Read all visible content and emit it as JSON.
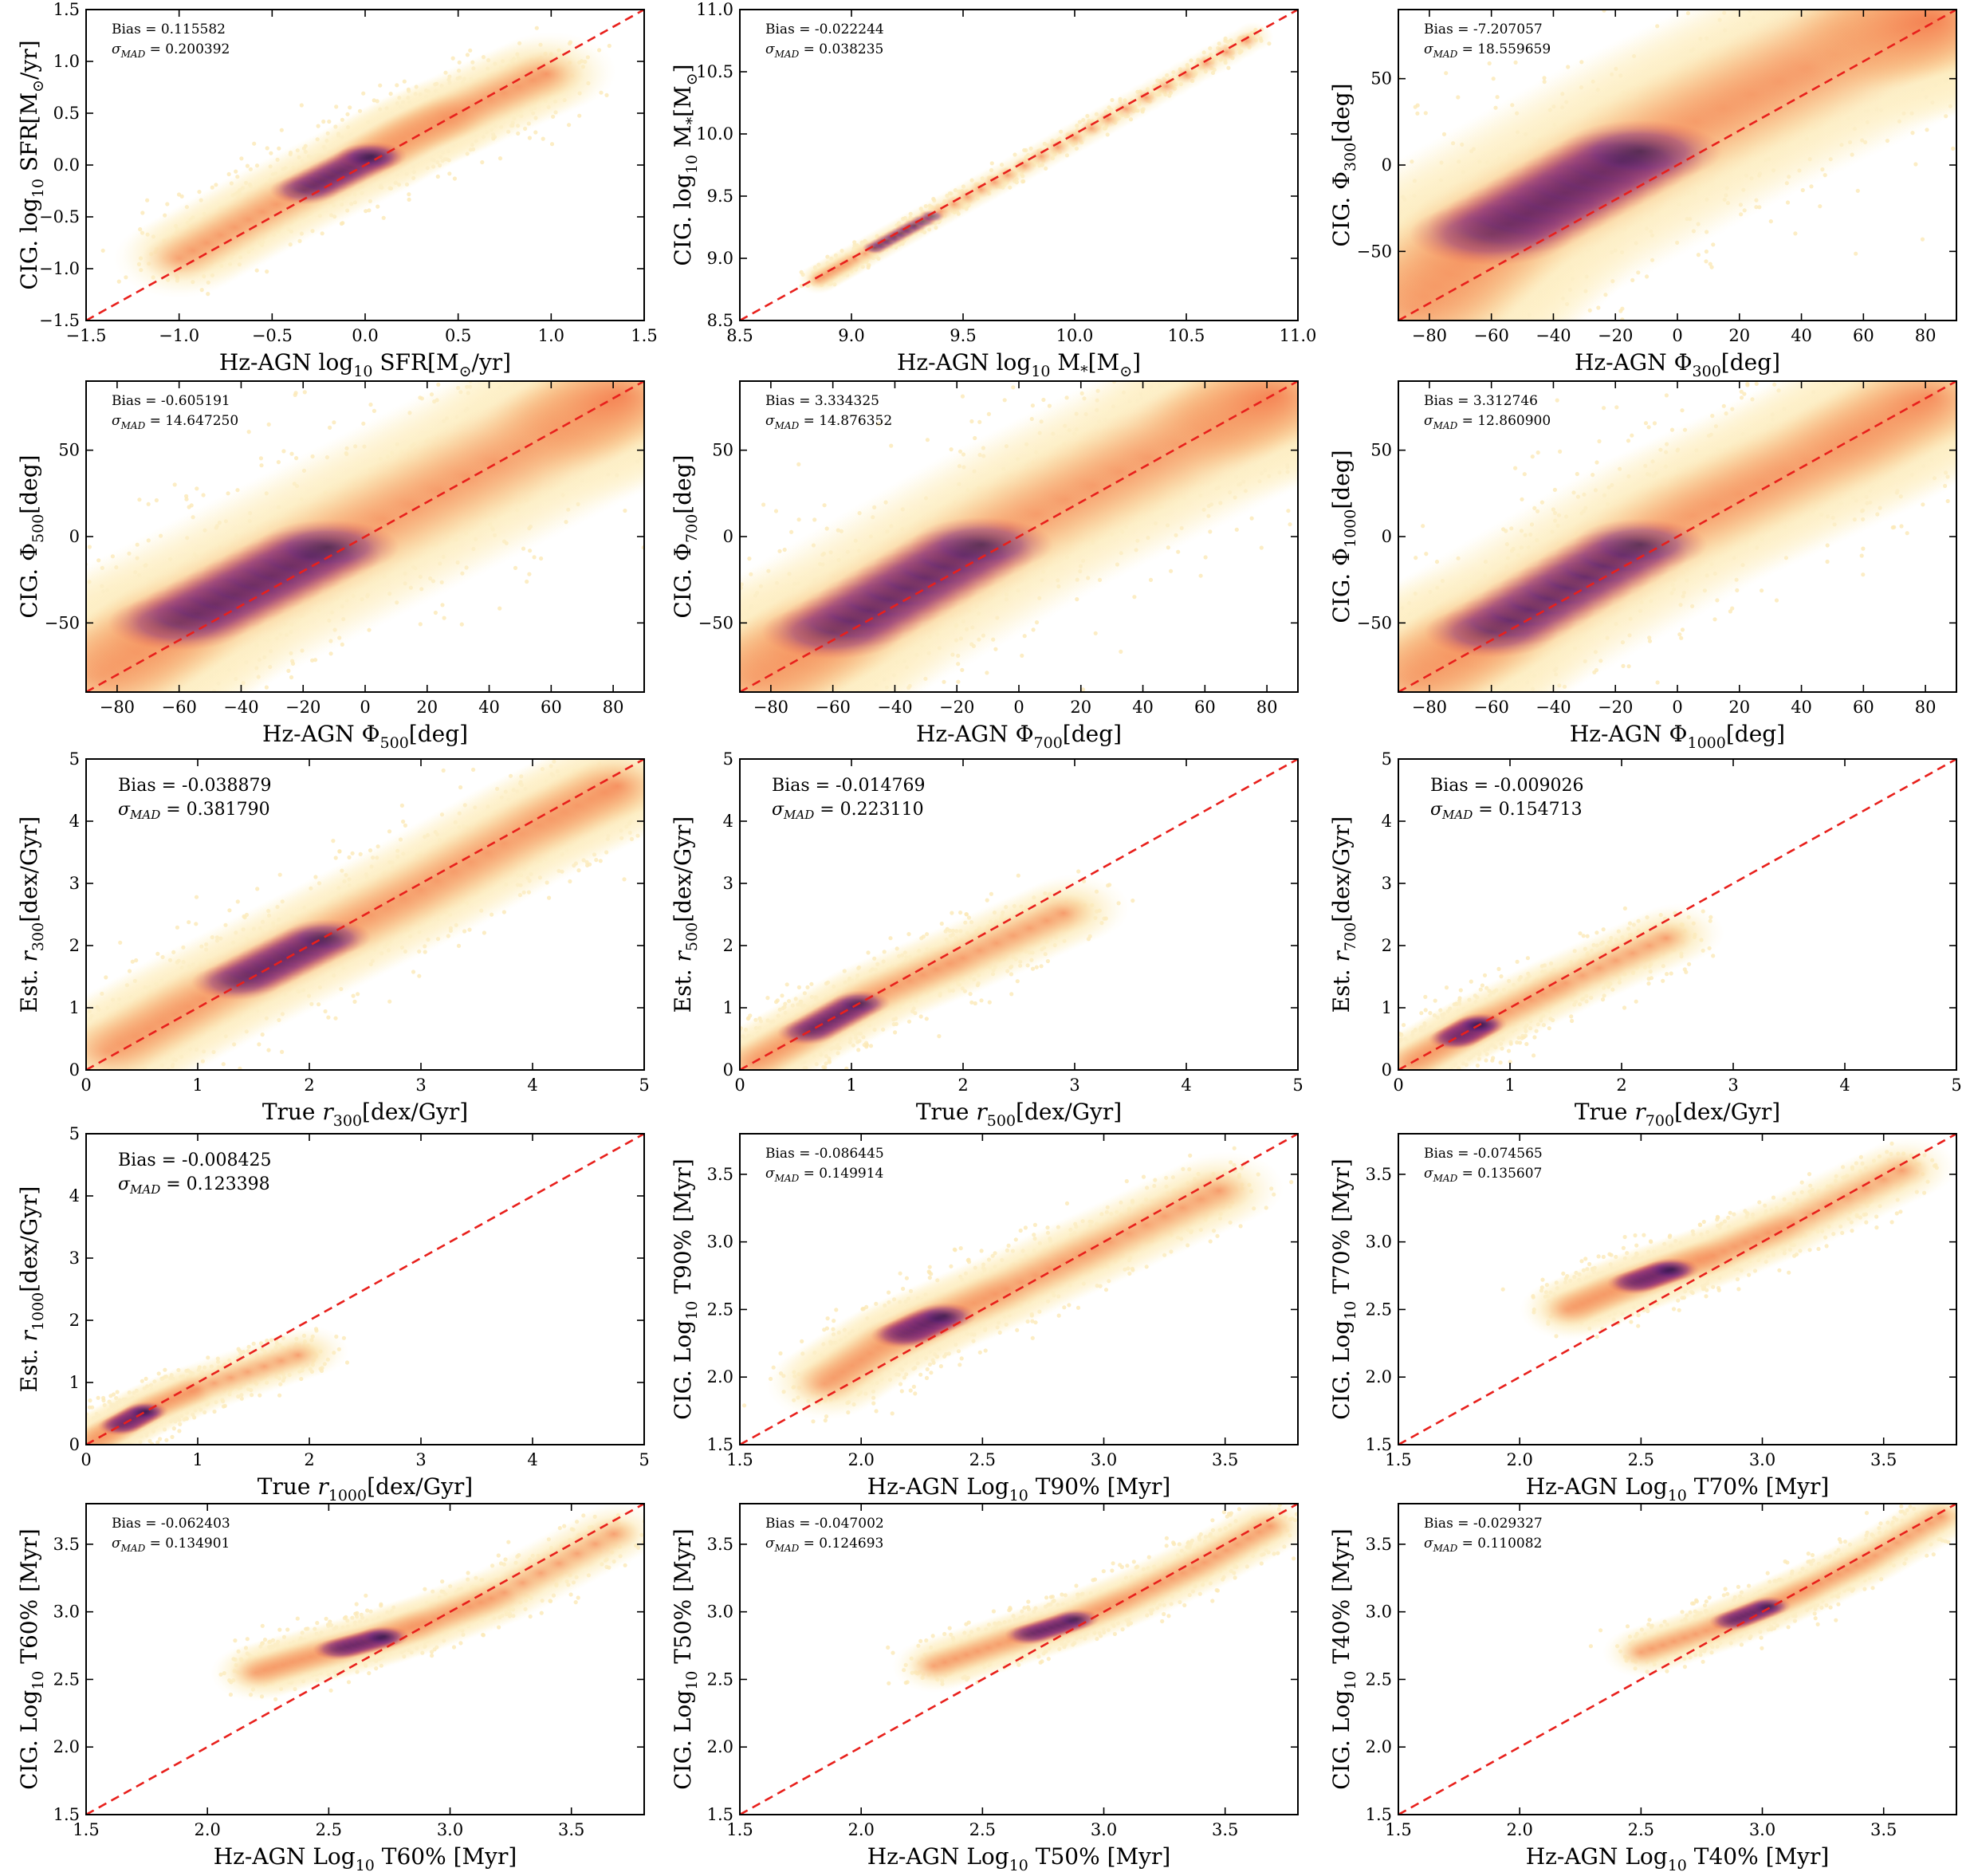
{
  "figure": {
    "caption": "",
    "colors": {
      "diagonal": "#e8201c",
      "cmap_low": "#fcf2c5",
      "cmap_mid": "#f26a4b",
      "cmap_high": "#1b0c41"
    }
  },
  "chart_data": [
    {
      "type": "scatter",
      "title": "",
      "xlabel": "Hz-AGN log10 SFR[M⊙/yr]",
      "ylabel": "CIG. log10 SFR[M⊙/yr]",
      "xlim": [
        -1.5,
        1.5
      ],
      "ylim": [
        -1.5,
        1.5
      ],
      "xticks": [
        -1.5,
        -1.0,
        -0.5,
        0.0,
        0.5,
        1.0,
        1.5
      ],
      "yticks": [
        -1.5,
        -1.0,
        -0.5,
        0.0,
        0.5,
        1.0,
        1.5
      ],
      "xtick_labels": [
        "−1.5",
        "−1.0",
        "−0.5",
        "0.0",
        "0.5",
        "1.0",
        "1.5"
      ],
      "ytick_labels": [
        "−1.5",
        "−1.0",
        "−0.5",
        "0.0",
        "0.5",
        "1.0",
        "1.5"
      ],
      "bias": "Bias = 0.115582",
      "sigma": "0.200392",
      "stat_size": "small",
      "reference_line": "y = x",
      "density_series": {
        "name": "",
        "x": [
          -1.0,
          -0.5,
          0.0,
          0.25,
          0.5,
          1.0
        ],
        "y": [
          -0.9,
          -0.4,
          0.05,
          0.3,
          0.5,
          0.9
        ],
        "spread": 0.22
      }
    },
    {
      "type": "scatter",
      "title": "",
      "xlabel": "Hz-AGN log10 M*[M⊙]",
      "ylabel": "CIG. log10 M*[M⊙]",
      "xlim": [
        8.5,
        11.0
      ],
      "ylim": [
        8.5,
        11.0
      ],
      "xticks": [
        8.5,
        9.0,
        9.5,
        10.0,
        10.5,
        11.0
      ],
      "yticks": [
        8.5,
        9.0,
        9.5,
        10.0,
        10.5,
        11.0
      ],
      "xtick_labels": [
        "8.5",
        "9.0",
        "9.5",
        "10.0",
        "10.5",
        "11.0"
      ],
      "ytick_labels": [
        "8.5",
        "9.0",
        "9.5",
        "10.0",
        "10.5",
        "11.0"
      ],
      "bias": "Bias = -0.022244",
      "sigma": "0.038235",
      "stat_size": "small",
      "reference_line": "y = x",
      "density_series": {
        "name": "",
        "x": [
          8.85,
          9.0,
          9.3,
          9.7,
          10.2,
          10.8
        ],
        "y": [
          8.83,
          8.98,
          9.28,
          9.67,
          10.17,
          10.78
        ],
        "spread": 0.04
      }
    },
    {
      "type": "scatter",
      "title": "",
      "xlabel": "Hz-AGN Φ300[deg]",
      "ylabel": "CIG. Φ300[deg]",
      "xlim": [
        -90,
        90
      ],
      "ylim": [
        -90,
        90
      ],
      "xticks": [
        -80,
        -60,
        -40,
        -20,
        0,
        20,
        40,
        60,
        80
      ],
      "yticks": [
        -50,
        0,
        50
      ],
      "xtick_labels": [
        "−80",
        "−60",
        "−40",
        "−20",
        "0",
        "20",
        "40",
        "60",
        "80"
      ],
      "ytick_labels": [
        "−50",
        "0",
        "50"
      ],
      "bias": "Bias = -7.207057",
      "sigma": "18.559659",
      "stat_size": "small",
      "reference_line": "y = x",
      "density_series": {
        "name": "",
        "x": [
          -85,
          -60,
          0,
          60,
          85
        ],
        "y": [
          -82,
          -40,
          20,
          72,
          86
        ],
        "spread": 35
      }
    },
    {
      "type": "scatter",
      "title": "",
      "xlabel": "Hz-AGN Φ500[deg]",
      "ylabel": "CIG. Φ500[deg]",
      "xlim": [
        -90,
        90
      ],
      "ylim": [
        -90,
        90
      ],
      "xticks": [
        -80,
        -60,
        -40,
        -20,
        0,
        20,
        40,
        60,
        80
      ],
      "yticks": [
        -50,
        0,
        50
      ],
      "xtick_labels": [
        "−80",
        "−60",
        "−40",
        "−20",
        "0",
        "20",
        "40",
        "60",
        "80"
      ],
      "ytick_labels": [
        "−50",
        "0",
        "50"
      ],
      "bias": "Bias = -0.605191",
      "sigma": "14.647250",
      "stat_size": "small",
      "reference_line": "y = x",
      "density_series": {
        "name": "",
        "x": [
          -85,
          -60,
          0,
          60,
          85
        ],
        "y": [
          -80,
          -50,
          5,
          60,
          84
        ],
        "spread": 30
      }
    },
    {
      "type": "scatter",
      "title": "",
      "xlabel": "Hz-AGN Φ700[deg]",
      "ylabel": "CIG. Φ700[deg]",
      "xlim": [
        -90,
        90
      ],
      "ylim": [
        -90,
        90
      ],
      "xticks": [
        -80,
        -60,
        -40,
        -20,
        0,
        20,
        40,
        60,
        80
      ],
      "yticks": [
        -50,
        0,
        50
      ],
      "xtick_labels": [
        "−80",
        "−60",
        "−40",
        "−20",
        "0",
        "20",
        "40",
        "60",
        "80"
      ],
      "ytick_labels": [
        "−50",
        "0",
        "50"
      ],
      "bias": "Bias = 3.334325",
      "sigma": "14.876352",
      "stat_size": "small",
      "reference_line": "y = x",
      "density_series": {
        "name": "",
        "x": [
          -85,
          -60,
          0,
          60,
          85
        ],
        "y": [
          -82,
          -55,
          8,
          62,
          84
        ],
        "spread": 30
      }
    },
    {
      "type": "scatter",
      "title": "",
      "xlabel": "Hz-AGN Φ1000[deg]",
      "ylabel": "CIG. Φ1000[deg]",
      "xlim": [
        -90,
        90
      ],
      "ylim": [
        -90,
        90
      ],
      "xticks": [
        -80,
        -60,
        -40,
        -20,
        0,
        20,
        40,
        60,
        80
      ],
      "yticks": [
        -50,
        0,
        50
      ],
      "xtick_labels": [
        "−80",
        "−60",
        "−40",
        "−20",
        "0",
        "20",
        "40",
        "60",
        "80"
      ],
      "ytick_labels": [
        "−50",
        "0",
        "50"
      ],
      "bias": "Bias = 3.312746",
      "sigma": "12.860900",
      "stat_size": "small",
      "reference_line": "y = x",
      "density_series": {
        "name": "",
        "x": [
          -85,
          -60,
          0,
          50,
          85
        ],
        "y": [
          -82,
          -55,
          8,
          50,
          84
        ],
        "spread": 28
      }
    },
    {
      "type": "scatter",
      "title": "",
      "xlabel": "True r300[dex/Gyr]",
      "ylabel": "Est. r300[dex/Gyr]",
      "xlim": [
        0,
        5
      ],
      "ylim": [
        0,
        5
      ],
      "xticks": [
        0,
        1,
        2,
        3,
        4,
        5
      ],
      "yticks": [
        0,
        1,
        2,
        3,
        4,
        5
      ],
      "xtick_labels": [
        "0",
        "1",
        "2",
        "3",
        "4",
        "5"
      ],
      "ytick_labels": [
        "0",
        "1",
        "2",
        "3",
        "4",
        "5"
      ],
      "bias": "Bias = -0.038879",
      "sigma": "0.381790",
      "stat_size": "large",
      "reference_line": "y = x",
      "density_series": {
        "name": "",
        "x": [
          0.2,
          1.0,
          2.0,
          3.0,
          4.0,
          4.8
        ],
        "y": [
          0.3,
          1.1,
          2.0,
          2.9,
          3.9,
          4.6
        ],
        "spread": 0.5
      }
    },
    {
      "type": "scatter",
      "title": "",
      "xlabel": "True r500[dex/Gyr]",
      "ylabel": "Est. r500[dex/Gyr]",
      "xlim": [
        0,
        5
      ],
      "ylim": [
        0,
        5
      ],
      "xticks": [
        0,
        1,
        2,
        3,
        4,
        5
      ],
      "yticks": [
        0,
        1,
        2,
        3,
        4,
        5
      ],
      "xtick_labels": [
        "0",
        "1",
        "2",
        "3",
        "4",
        "5"
      ],
      "ytick_labels": [
        "0",
        "1",
        "2",
        "3",
        "4",
        "5"
      ],
      "bias": "Bias = -0.014769",
      "sigma": "0.223110",
      "stat_size": "large",
      "reference_line": "y = x",
      "density_series": {
        "name": "",
        "x": [
          0.1,
          0.6,
          1.2,
          2.0,
          3.0
        ],
        "y": [
          0.1,
          0.6,
          1.2,
          1.8,
          2.6
        ],
        "spread": 0.3
      }
    },
    {
      "type": "scatter",
      "title": "",
      "xlabel": "True r700[dex/Gyr]",
      "ylabel": "Est. r700[dex/Gyr]",
      "xlim": [
        0,
        5
      ],
      "ylim": [
        0,
        5
      ],
      "xticks": [
        0,
        1,
        2,
        3,
        4,
        5
      ],
      "yticks": [
        0,
        1,
        2,
        3,
        4,
        5
      ],
      "xtick_labels": [
        "0",
        "1",
        "2",
        "3",
        "4",
        "5"
      ],
      "ytick_labels": [
        "0",
        "1",
        "2",
        "3",
        "4",
        "5"
      ],
      "bias": "Bias = -0.009026",
      "sigma": "0.154713",
      "stat_size": "large",
      "reference_line": "y = x",
      "density_series": {
        "name": "",
        "x": [
          0.1,
          0.5,
          0.8,
          1.5,
          2.5
        ],
        "y": [
          0.1,
          0.5,
          0.8,
          1.4,
          2.2
        ],
        "spread": 0.25
      }
    },
    {
      "type": "scatter",
      "title": "",
      "xlabel": "True r1000[dex/Gyr]",
      "ylabel": "Est. r1000[dex/Gyr]",
      "xlim": [
        0,
        5
      ],
      "ylim": [
        0,
        5
      ],
      "xticks": [
        0,
        1,
        2,
        3,
        4,
        5
      ],
      "yticks": [
        0,
        1,
        2,
        3,
        4,
        5
      ],
      "xtick_labels": [
        "0",
        "1",
        "2",
        "3",
        "4",
        "5"
      ],
      "ytick_labels": [
        "0",
        "1",
        "2",
        "3",
        "4",
        "5"
      ],
      "bias": "Bias = -0.008425",
      "sigma": "0.123398",
      "stat_size": "large",
      "reference_line": "y = x",
      "density_series": {
        "name": "",
        "x": [
          0.05,
          0.3,
          0.6,
          1.0,
          2.0
        ],
        "y": [
          0.05,
          0.3,
          0.6,
          0.9,
          1.5
        ],
        "spread": 0.2
      }
    },
    {
      "type": "scatter",
      "title": "",
      "xlabel": "Hz-AGN Log10 T90% [Myr]",
      "ylabel": "CIG. Log10 T90% [Myr]",
      "xlim": [
        1.5,
        3.8
      ],
      "ylim": [
        1.5,
        3.8
      ],
      "xticks": [
        1.5,
        2.0,
        2.5,
        3.0,
        3.5
      ],
      "yticks": [
        1.5,
        2.0,
        2.5,
        3.0,
        3.5
      ],
      "xtick_labels": [
        "1.5",
        "2.0",
        "2.5",
        "3.0",
        "3.5"
      ],
      "ytick_labels": [
        "1.5",
        "2.0",
        "2.5",
        "3.0",
        "3.5"
      ],
      "bias": "Bias = -0.086445",
      "sigma": "0.149914",
      "stat_size": "small",
      "reference_line": "y = x",
      "density_series": {
        "name": "",
        "x": [
          1.85,
          2.1,
          2.3,
          2.6,
          3.0,
          3.5
        ],
        "y": [
          1.95,
          2.25,
          2.42,
          2.65,
          2.98,
          3.4
        ],
        "spread": 0.15
      }
    },
    {
      "type": "scatter",
      "title": "",
      "xlabel": "Hz-AGN Log10 T70% [Myr]",
      "ylabel": "CIG. Log10 T70% [Myr]",
      "xlim": [
        1.5,
        3.8
      ],
      "ylim": [
        1.5,
        3.8
      ],
      "xticks": [
        1.5,
        2.0,
        2.5,
        3.0,
        3.5
      ],
      "yticks": [
        1.5,
        2.0,
        2.5,
        3.0,
        3.5
      ],
      "xtick_labels": [
        "1.5",
        "2.0",
        "2.5",
        "3.0",
        "3.5"
      ],
      "ytick_labels": [
        "1.5",
        "2.0",
        "2.5",
        "3.0",
        "3.5"
      ],
      "bias": "Bias = -0.074565",
      "sigma": "0.135607",
      "stat_size": "small",
      "reference_line": "y = x",
      "density_series": {
        "name": "",
        "x": [
          2.2,
          2.4,
          2.6,
          2.8,
          3.1,
          3.6
        ],
        "y": [
          2.5,
          2.65,
          2.78,
          2.9,
          3.12,
          3.55
        ],
        "spread": 0.12
      }
    },
    {
      "type": "scatter",
      "title": "",
      "xlabel": "Hz-AGN Log10 T60% [Myr]",
      "ylabel": "CIG. Log10 T60% [Myr]",
      "xlim": [
        1.5,
        3.8
      ],
      "ylim": [
        1.5,
        3.8
      ],
      "xticks": [
        1.5,
        2.0,
        2.5,
        3.0,
        3.5
      ],
      "yticks": [
        1.5,
        2.0,
        2.5,
        3.0,
        3.5
      ],
      "xtick_labels": [
        "1.5",
        "2.0",
        "2.5",
        "3.0",
        "3.5"
      ],
      "ytick_labels": [
        "1.5",
        "2.0",
        "2.5",
        "3.0",
        "3.5"
      ],
      "bias": "Bias = -0.062403",
      "sigma": "0.134901",
      "stat_size": "small",
      "reference_line": "y = x",
      "density_series": {
        "name": "",
        "x": [
          2.2,
          2.45,
          2.7,
          2.9,
          3.2,
          3.7
        ],
        "y": [
          2.55,
          2.68,
          2.8,
          2.92,
          3.12,
          3.6
        ],
        "spread": 0.11
      }
    },
    {
      "type": "scatter",
      "title": "",
      "xlabel": "Hz-AGN Log10 T50% [Myr]",
      "ylabel": "CIG. Log10 T50% [Myr]",
      "xlim": [
        1.5,
        3.8
      ],
      "ylim": [
        1.5,
        3.8
      ],
      "xticks": [
        1.5,
        2.0,
        2.5,
        3.0,
        3.5
      ],
      "yticks": [
        1.5,
        2.0,
        2.5,
        3.0,
        3.5
      ],
      "xtick_labels": [
        "1.5",
        "2.0",
        "2.5",
        "3.0",
        "3.5"
      ],
      "ytick_labels": [
        "1.5",
        "2.0",
        "2.5",
        "3.0",
        "3.5"
      ],
      "bias": "Bias = -0.047002",
      "sigma": "0.124693",
      "stat_size": "small",
      "reference_line": "y = x",
      "density_series": {
        "name": "",
        "x": [
          2.3,
          2.6,
          2.85,
          3.1,
          3.4,
          3.7
        ],
        "y": [
          2.6,
          2.78,
          2.92,
          3.1,
          3.35,
          3.65
        ],
        "spread": 0.1
      }
    },
    {
      "type": "scatter",
      "title": "",
      "xlabel": "Hz-AGN Log10 T40% [Myr]",
      "ylabel": "CIG. Log10 T40% [Myr]",
      "xlim": [
        1.5,
        3.8
      ],
      "ylim": [
        1.5,
        3.8
      ],
      "xticks": [
        1.5,
        2.0,
        2.5,
        3.0,
        3.5
      ],
      "yticks": [
        1.5,
        2.0,
        2.5,
        3.0,
        3.5
      ],
      "xtick_labels": [
        "1.5",
        "2.0",
        "2.5",
        "3.0",
        "3.5"
      ],
      "ytick_labels": [
        "1.5",
        "2.0",
        "2.5",
        "3.0",
        "3.5"
      ],
      "bias": "Bias = -0.029327",
      "sigma": "0.110082",
      "stat_size": "small",
      "reference_line": "y = x",
      "density_series": {
        "name": "",
        "x": [
          2.5,
          2.8,
          3.0,
          3.2,
          3.45,
          3.75
        ],
        "y": [
          2.7,
          2.88,
          3.02,
          3.18,
          3.4,
          3.72
        ],
        "spread": 0.09
      }
    }
  ]
}
